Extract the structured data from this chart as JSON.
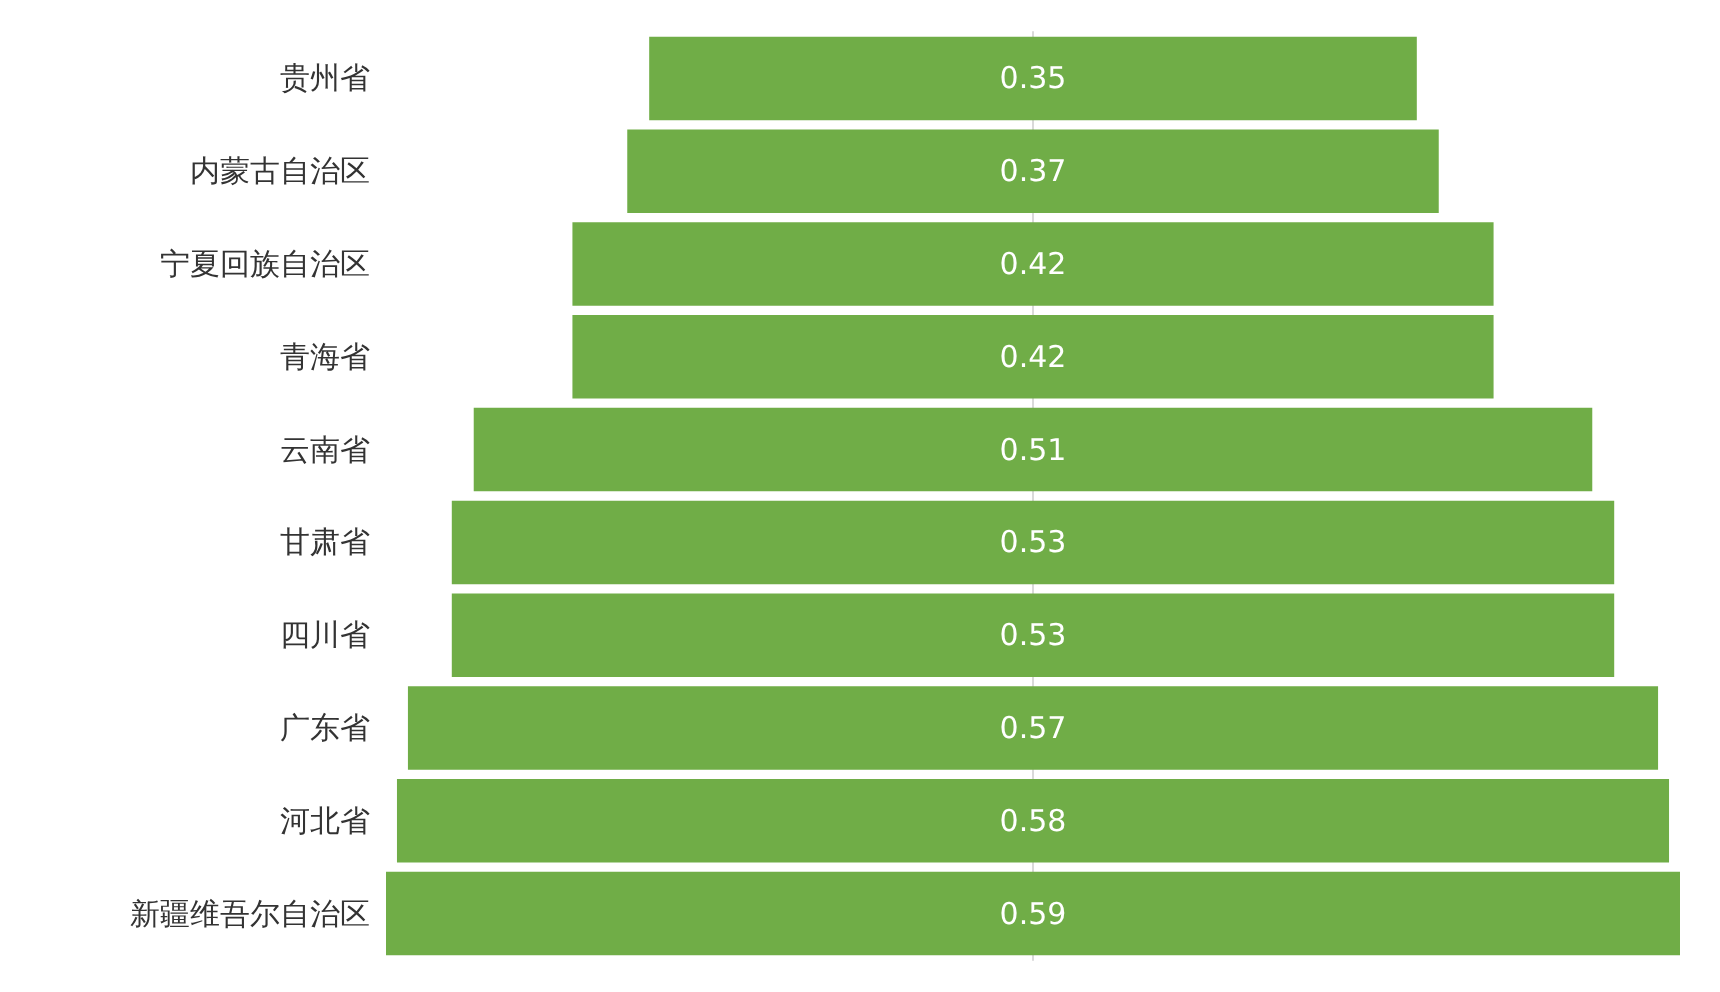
{
  "chart_data": {
    "type": "other",
    "categories": [
      "贵州省",
      "内蒙古自治区",
      "宁夏回族自治区",
      "青海省",
      "云南省",
      "甘肃省",
      "四川省",
      "广东省",
      "河北省",
      "新疆维吾尔自治区"
    ],
    "values": [
      0.35,
      0.37,
      0.42,
      0.42,
      0.51,
      0.53,
      0.53,
      0.57,
      0.58,
      0.59
    ],
    "color": "#70ad47",
    "data_labels": true
  }
}
